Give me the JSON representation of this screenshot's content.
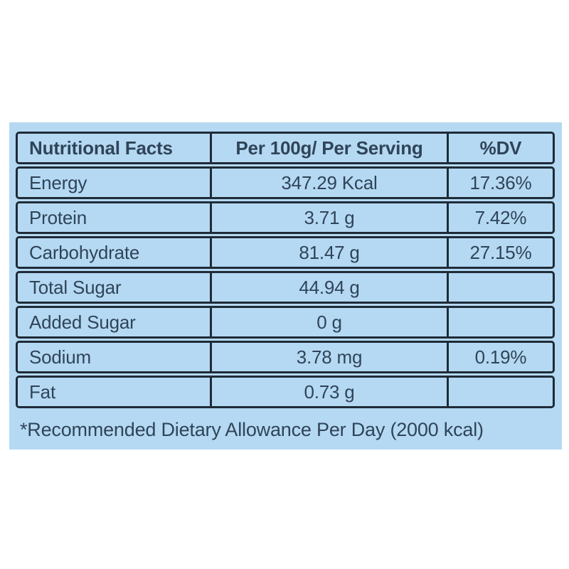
{
  "page": {
    "background": "#ffffff"
  },
  "panel": {
    "background": "#b5d9f2",
    "border_color": "#1f2b38",
    "text_color": "#2f4459"
  },
  "table": {
    "headers": [
      "Nutritional Facts",
      "Per 100g/ Per Serving",
      "%DV"
    ],
    "rows": [
      {
        "label": "Energy",
        "value": "347.29 Kcal",
        "dv": "17.36%"
      },
      {
        "label": "Protein",
        "value": "3.71 g",
        "dv": "7.42%"
      },
      {
        "label": "Carbohydrate",
        "value": "81.47 g",
        "dv": "27.15%"
      },
      {
        "label": "Total Sugar",
        "value": "44.94 g",
        "dv": ""
      },
      {
        "label": "Added Sugar",
        "value": "0 g",
        "dv": ""
      },
      {
        "label": "Sodium",
        "value": "3.78 mg",
        "dv": "0.19%"
      },
      {
        "label": "Fat",
        "value": "0.73 g",
        "dv": ""
      }
    ]
  },
  "footnote": "*Recommended Dietary Allowance Per Day (2000 kcal)"
}
